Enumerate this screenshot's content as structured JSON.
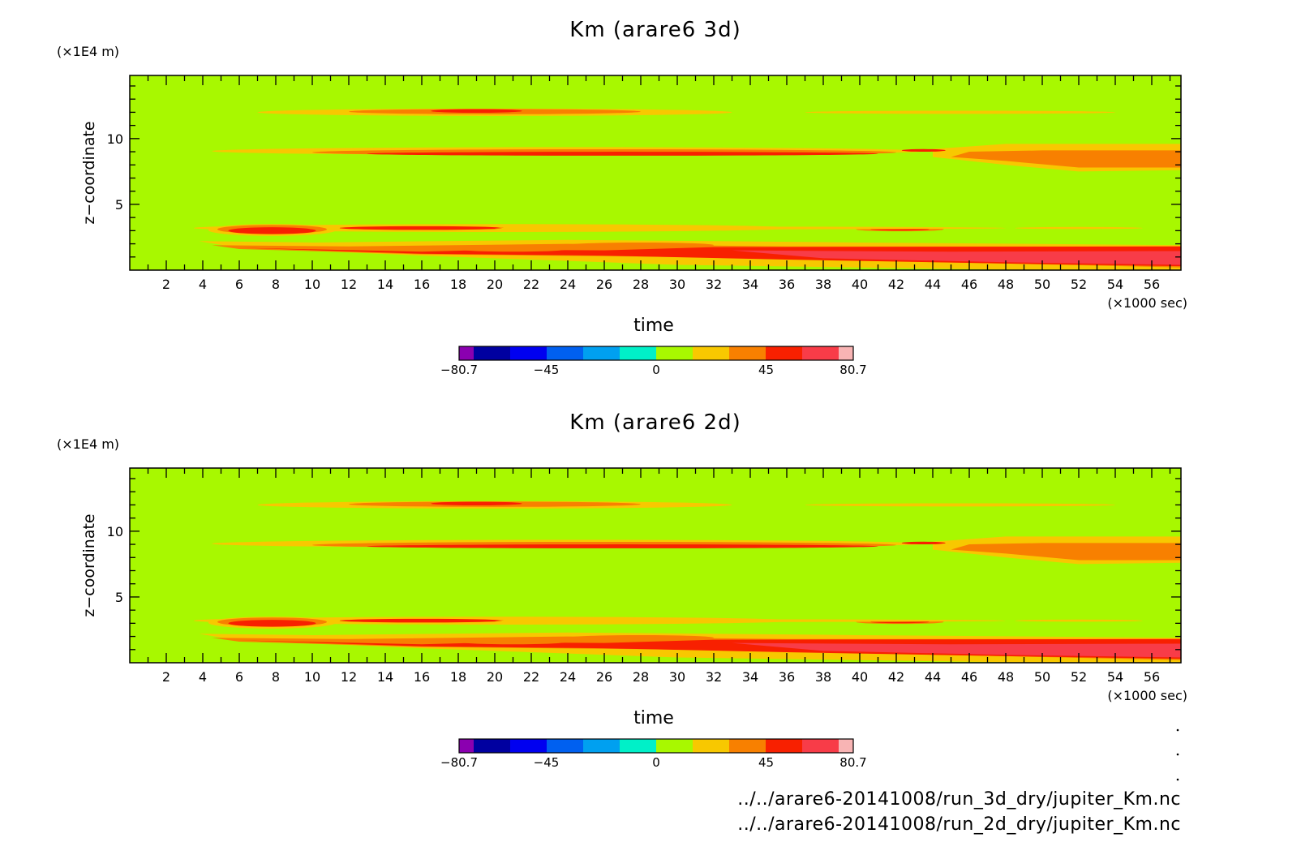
{
  "chart_data": [
    {
      "type": "heatmap",
      "title": "Km (arare6 3d)",
      "xlabel": "time",
      "x_unit": "(×1000 sec)",
      "ylabel": "z−coordinate",
      "y_unit": "(×1E4 m)",
      "xlim": [
        0,
        57.6
      ],
      "ylim": [
        0,
        14.8
      ],
      "x_ticks": [
        2,
        4,
        6,
        8,
        10,
        12,
        14,
        16,
        18,
        20,
        22,
        24,
        26,
        28,
        30,
        32,
        34,
        36,
        38,
        40,
        42,
        44,
        46,
        48,
        50,
        52,
        54,
        56
      ],
      "y_ticks": [
        5,
        10
      ],
      "background_value": "0 to 10 (green)",
      "bands": [
        {
          "level": 12.0,
          "x_start": 7,
          "x_end": 33,
          "max_class": "red"
        },
        {
          "level": 12.0,
          "x_start": 37,
          "x_end": 54,
          "max_class": "yellow"
        },
        {
          "level": 9.0,
          "x_start": 5,
          "x_end": 57.6,
          "max_class": "red"
        },
        {
          "level": 8.2,
          "x_start": 46,
          "x_end": 57.6,
          "max_class": "orange"
        },
        {
          "level": 3.1,
          "x_start": 3.5,
          "x_end": 55,
          "max_class": "red"
        },
        {
          "level": 1.5,
          "x_start": 3.5,
          "x_end": 57.6,
          "max_class": "red"
        }
      ],
      "colorbar": {
        "min": -80.7,
        "max": 80.7,
        "labels": [
          "-80.7",
          "-45",
          "0",
          "45",
          "80.7"
        ],
        "colors": [
          "#8b00b0",
          "#0000a0",
          "#0000f0",
          "#0060f0",
          "#00a0f0",
          "#00f0c8",
          "#a8f800",
          "#f8c800",
          "#f88000",
          "#f82000",
          "#f83c48",
          "#f8b4b4"
        ]
      }
    },
    {
      "type": "heatmap",
      "title": "Km (arare6 2d)",
      "xlabel": "time",
      "x_unit": "(×1000 sec)",
      "ylabel": "z−coordinate",
      "y_unit": "(×1E4 m)",
      "xlim": [
        0,
        57.6
      ],
      "ylim": [
        0,
        14.8
      ],
      "x_ticks": [
        2,
        4,
        6,
        8,
        10,
        12,
        14,
        16,
        18,
        20,
        22,
        24,
        26,
        28,
        30,
        32,
        34,
        36,
        38,
        40,
        42,
        44,
        46,
        48,
        50,
        52,
        54,
        56
      ],
      "y_ticks": [
        5,
        10
      ],
      "background_value": "0 to 10 (green)",
      "bands": [
        {
          "level": 12.0,
          "x_start": 7,
          "x_end": 33,
          "max_class": "red"
        },
        {
          "level": 12.0,
          "x_start": 37,
          "x_end": 54,
          "max_class": "yellow"
        },
        {
          "level": 9.0,
          "x_start": 5,
          "x_end": 57.6,
          "max_class": "red"
        },
        {
          "level": 8.2,
          "x_start": 46,
          "x_end": 57.6,
          "max_class": "orange"
        },
        {
          "level": 3.1,
          "x_start": 3.5,
          "x_end": 55,
          "max_class": "red"
        },
        {
          "level": 1.5,
          "x_start": 3.5,
          "x_end": 57.6,
          "max_class": "red"
        }
      ],
      "colorbar": {
        "min": -80.7,
        "max": 80.7,
        "labels": [
          "-80.7",
          "-45",
          "0",
          "45",
          "80.7"
        ],
        "colors": [
          "#8b00b0",
          "#0000a0",
          "#0000f0",
          "#0060f0",
          "#00a0f0",
          "#00f0c8",
          "#a8f800",
          "#f8c800",
          "#f88000",
          "#f82000",
          "#f83c48",
          "#f8b4b4"
        ]
      }
    }
  ],
  "files": [
    "../../arare6-20141008/run_3d_dry/jupiter_Km.nc",
    "../../arare6-20141008/run_2d_dry/jupiter_Km.nc"
  ],
  "colors": {
    "background": "#a8f800",
    "yellow": "#f8c800",
    "orange": "#f88000",
    "red": "#f82000",
    "redlight": "#f83c48"
  }
}
